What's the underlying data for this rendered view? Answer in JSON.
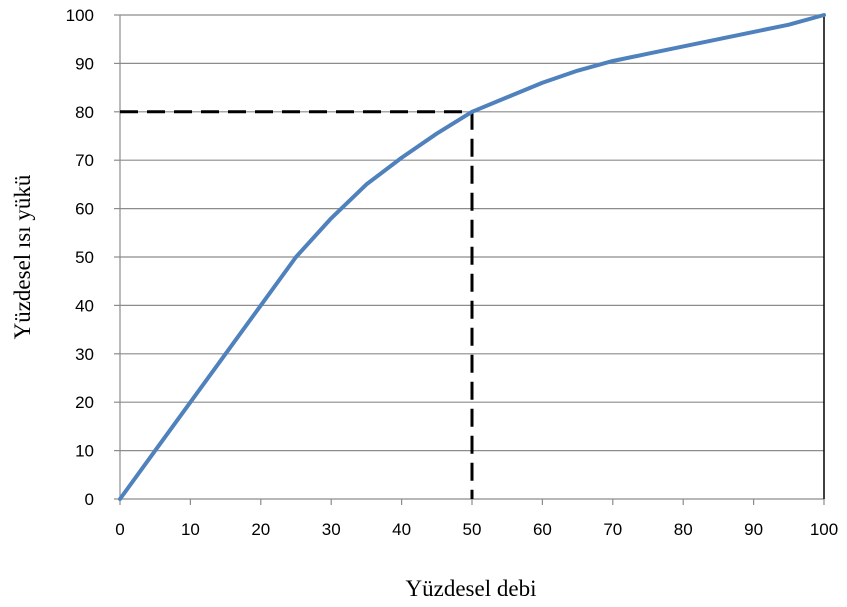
{
  "chart_data": {
    "type": "line",
    "title": "",
    "xlabel": "Yüzdesel debi",
    "ylabel": "Yüzdesel ısı yükü",
    "xlim": [
      0,
      100
    ],
    "ylim": [
      0,
      100
    ],
    "x_ticks": [
      0,
      10,
      20,
      30,
      40,
      50,
      60,
      70,
      80,
      90,
      100
    ],
    "y_ticks": [
      0,
      10,
      20,
      30,
      40,
      50,
      60,
      70,
      80,
      90,
      100
    ],
    "grid": "horizontal",
    "legend": "none",
    "series": [
      {
        "color": "#4f81bd",
        "x": [
          0,
          5,
          10,
          15,
          20,
          25,
          30,
          35,
          40,
          45,
          50,
          55,
          60,
          65,
          70,
          75,
          80,
          85,
          90,
          95,
          100
        ],
        "y": [
          0,
          10,
          20,
          30,
          40,
          50,
          58,
          65,
          70.5,
          75.5,
          80,
          83,
          86,
          88.5,
          90.5,
          92,
          93.5,
          95,
          96.5,
          98,
          100
        ]
      }
    ],
    "reference_lines": [
      {
        "style": "dashed",
        "color": "#000000",
        "from": [
          0,
          80
        ],
        "to": [
          50,
          80
        ]
      },
      {
        "style": "dashed",
        "color": "#000000",
        "from": [
          50,
          80
        ],
        "to": [
          50,
          0
        ]
      },
      {
        "style": "solid",
        "color": "#000000",
        "from": [
          100,
          0
        ],
        "to": [
          100,
          100
        ]
      }
    ]
  }
}
